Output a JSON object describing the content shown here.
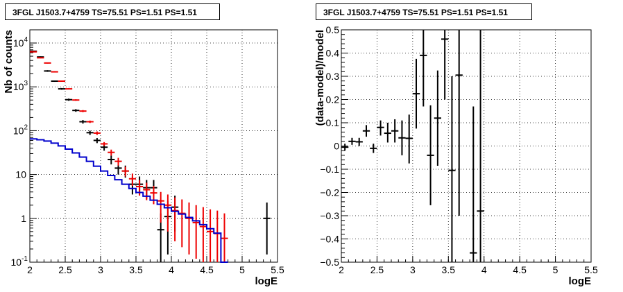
{
  "chart_data": [
    {
      "type": "line",
      "title": "3FGL J1503.7+4759 TS=75.51 PS=1.51 PS=1.51",
      "xlabel": "logE",
      "ylabel": "Nb of counts",
      "xlim": [
        2,
        5.5
      ],
      "ylim": [
        0.1,
        20000
      ],
      "yscale": "log",
      "grid": true,
      "x_ticks": [
        "2",
        "2.5",
        "3",
        "3.5",
        "4",
        "4.5",
        "5",
        "5.5"
      ],
      "y_ticks": [
        "10^-1",
        "1",
        "10",
        "10^2",
        "10^3",
        "10^4"
      ],
      "colors": {
        "data": "#000000",
        "model": "#ee0000",
        "component": "#0000cc"
      },
      "series": [
        {
          "style": "points-errorbars",
          "x": [
            2.05,
            2.15,
            2.25,
            2.35,
            2.45,
            2.55,
            2.65,
            2.75,
            2.85,
            2.95,
            3.05,
            3.15,
            3.25,
            3.35,
            3.45,
            3.55,
            3.65,
            3.75,
            3.85,
            3.95,
            4.05,
            5.35
          ],
          "y": [
            6500,
            4800,
            2300,
            1350,
            900,
            510,
            290,
            160,
            90,
            60,
            42,
            22,
            14,
            12,
            6,
            6,
            5,
            5,
            0.55,
            1.1,
            1.8,
            1
          ],
          "ylow": [
            6300,
            4650,
            2200,
            1300,
            860,
            480,
            270,
            145,
            80,
            52,
            35,
            17,
            10,
            8.5,
            3.5,
            3.5,
            2.8,
            2.8,
            0.1,
            0.15,
            0.5,
            0.15
          ],
          "yhigh": [
            6700,
            4950,
            2400,
            1400,
            940,
            540,
            310,
            175,
            100,
            68,
            49,
            27,
            18,
            16,
            9,
            9,
            7.5,
            7.5,
            1.3,
            2.5,
            3.3,
            2.3
          ]
        },
        {
          "style": "points-errorbars",
          "x": [
            2.05,
            2.15,
            2.25,
            2.35,
            2.45,
            2.55,
            2.65,
            2.75,
            2.85,
            2.95,
            3.05,
            3.15,
            3.25,
            3.35,
            3.45,
            3.55,
            3.65,
            3.75,
            3.85,
            3.95,
            4.05,
            4.15,
            4.25,
            4.35,
            4.45,
            4.55,
            4.65,
            4.75
          ],
          "y": [
            6300,
            4600,
            3500,
            2200,
            1350,
            900,
            500,
            280,
            160,
            88,
            50,
            32,
            20,
            12,
            8,
            5.3,
            4.5,
            3.8,
            2.5,
            2,
            1.5,
            1.3,
            1,
            0.8,
            0.65,
            0.5,
            0.45,
            0.35
          ],
          "ylow": [
            6150,
            4480,
            3400,
            2130,
            1310,
            870,
            480,
            265,
            150,
            80,
            45,
            27,
            16,
            9,
            5.5,
            3.3,
            2.6,
            2.1,
            0.8,
            0.5,
            0.3,
            0.22,
            0.15,
            0.12,
            0.1,
            0.1,
            0.1,
            0.1
          ],
          "yhigh": [
            6450,
            4720,
            3600,
            2270,
            1390,
            930,
            520,
            295,
            170,
            96,
            55,
            37,
            24,
            15,
            10.5,
            7.5,
            6.5,
            5.5,
            4,
            3.5,
            3,
            2.7,
            2.3,
            2,
            1.8,
            1.6,
            1.5,
            1.3
          ]
        },
        {
          "style": "step",
          "edges": [
            2.0,
            2.1,
            2.2,
            2.3,
            2.4,
            2.5,
            2.6,
            2.7,
            2.8,
            2.9,
            3.0,
            3.1,
            3.2,
            3.3,
            3.4,
            3.5,
            3.6,
            3.7,
            3.8,
            3.9,
            4.0,
            4.1,
            4.2,
            4.3,
            4.4,
            4.5,
            4.6,
            4.7,
            4.8
          ],
          "values": [
            65,
            62,
            58,
            52,
            45,
            38,
            31,
            25,
            20,
            15.5,
            12,
            9.5,
            7.6,
            6,
            4.8,
            3.9,
            3.2,
            2.6,
            2.1,
            1.75,
            1.45,
            1.25,
            1.05,
            0.88,
            0.72,
            0.58,
            0.46,
            0.1
          ]
        }
      ]
    },
    {
      "type": "scatter",
      "title": "3FGL J1503.7+4759 TS=75.51 PS=1.51 PS=1.51",
      "xlabel": "logE",
      "ylabel": "(data-model)/model",
      "xlim": [
        2,
        5.5
      ],
      "ylim": [
        -0.5,
        0.5
      ],
      "grid": true,
      "x_ticks": [
        "2",
        "2.5",
        "3",
        "3.5",
        "4",
        "4.5",
        "5",
        "5.5"
      ],
      "y_ticks": [
        "−0.5",
        "−0.4",
        "−0.3",
        "−0.2",
        "−0.1",
        "0",
        "0.1",
        "0.2",
        "0.3",
        "0.4",
        "0.5"
      ],
      "series": [
        {
          "style": "points-errorbars",
          "x": [
            2.05,
            2.15,
            2.25,
            2.35,
            2.45,
            2.55,
            2.65,
            2.75,
            2.85,
            2.95,
            3.05,
            3.15,
            3.25,
            3.35,
            3.45,
            3.55,
            3.65,
            3.85,
            3.95
          ],
          "y": [
            -0.005,
            0.02,
            0.018,
            0.065,
            -0.01,
            0.08,
            0.055,
            0.065,
            0.035,
            0.033,
            0.225,
            0.39,
            -0.04,
            0.12,
            0.46,
            -0.105,
            0.305,
            -0.46,
            -0.28
          ],
          "ylow": [
            -0.02,
            0.005,
            0.0,
            0.04,
            -0.03,
            0.045,
            0.015,
            0.015,
            -0.04,
            -0.075,
            0.075,
            0.17,
            -0.255,
            -0.085,
            0.2,
            -0.5,
            -0.3,
            -0.5,
            -0.5
          ],
          "yhigh": [
            0.01,
            0.035,
            0.035,
            0.09,
            0.01,
            0.11,
            0.1,
            0.115,
            0.11,
            0.135,
            0.375,
            0.5,
            0.175,
            0.325,
            0.5,
            0.3,
            0.5,
            0.17,
            0.5
          ]
        }
      ]
    }
  ]
}
